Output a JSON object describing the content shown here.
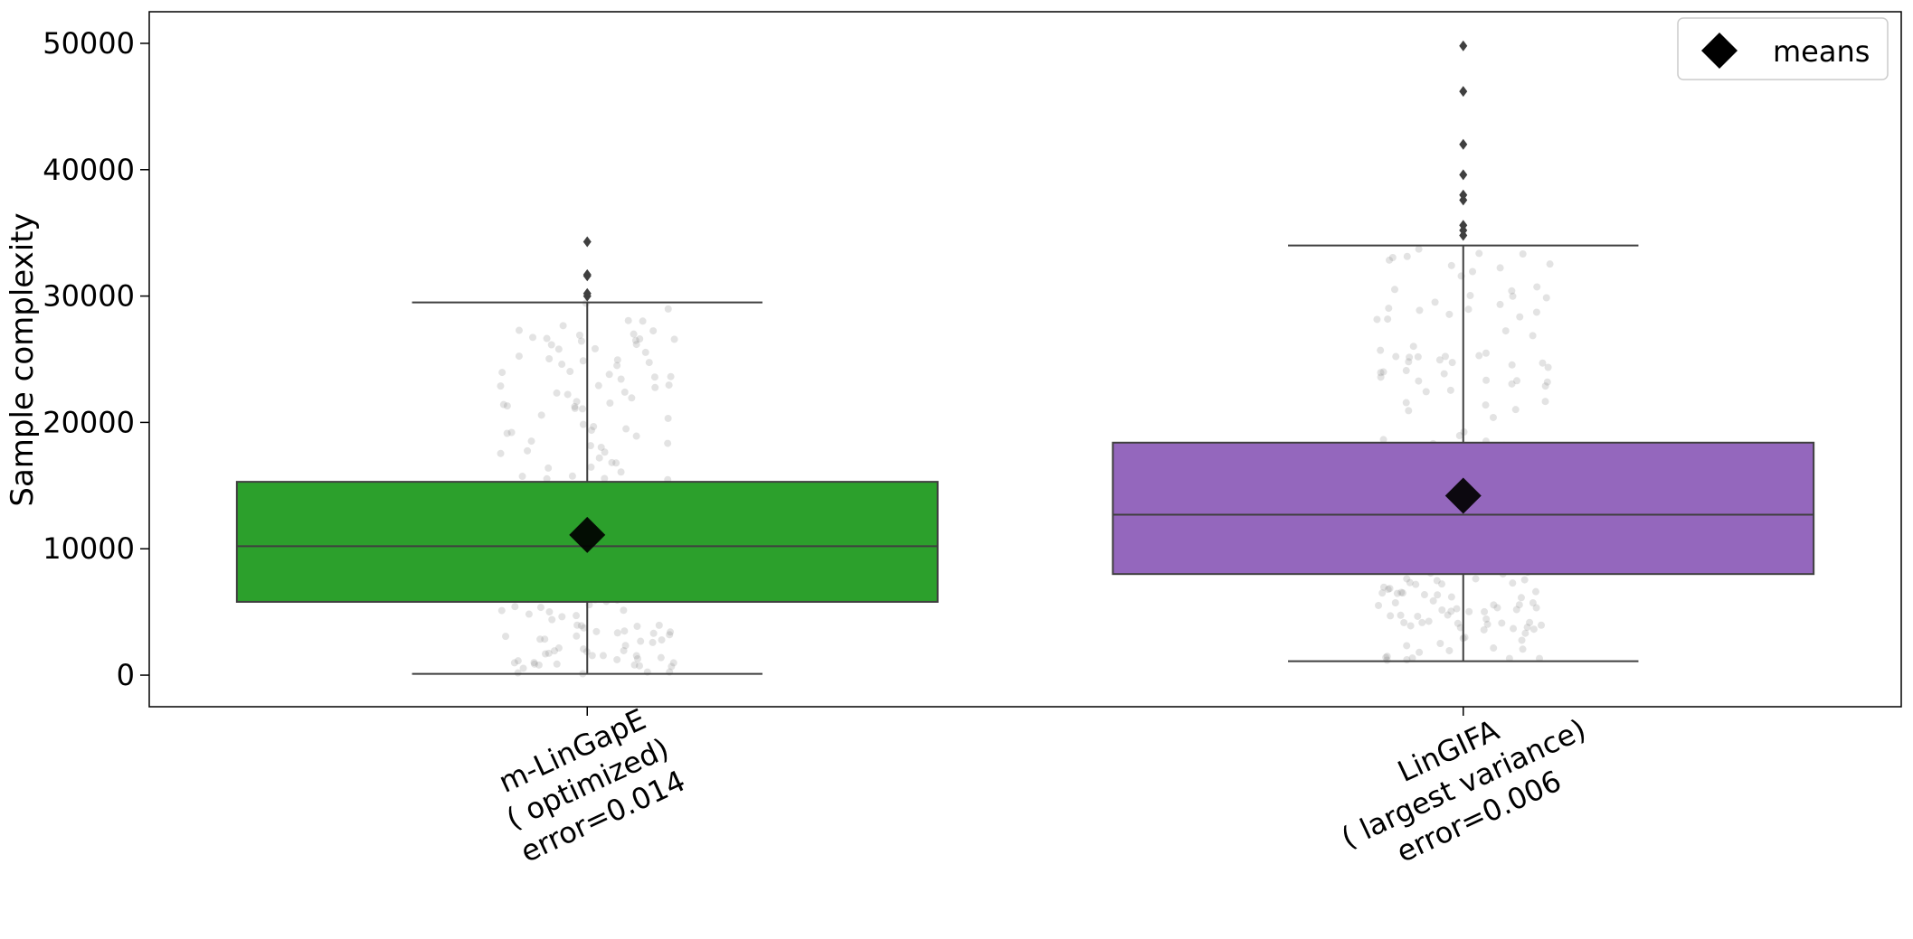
{
  "chart_data": {
    "type": "box",
    "ylabel": "Sample complexity",
    "ylim": [
      -2500,
      52500
    ],
    "yticks": [
      0,
      10000,
      20000,
      30000,
      40000,
      50000
    ],
    "legend": {
      "label": "means",
      "position": "top-right",
      "marker": "diamond"
    },
    "grid": false,
    "categories": [
      {
        "label_lines": [
          "m-LinGapE",
          "( optimized)",
          "error=0.014"
        ],
        "color": "#2ca02c",
        "whisker_low": 100,
        "q1": 5800,
        "median": 10200,
        "q3": 15300,
        "whisker_high": 29500,
        "mean": 11100,
        "outliers": [
          30000,
          30200,
          31600,
          31700,
          34300
        ]
      },
      {
        "label_lines": [
          "LinGIFA",
          "( largest variance)",
          "error=0.006"
        ],
        "color": "#9467bd",
        "whisker_low": 1100,
        "q1": 8000,
        "median": 12700,
        "q3": 18400,
        "whisker_high": 34000,
        "mean": 14200,
        "outliers": [
          34800,
          35200,
          35600,
          37600,
          38000,
          39600,
          42000,
          46200,
          49800
        ]
      }
    ]
  }
}
